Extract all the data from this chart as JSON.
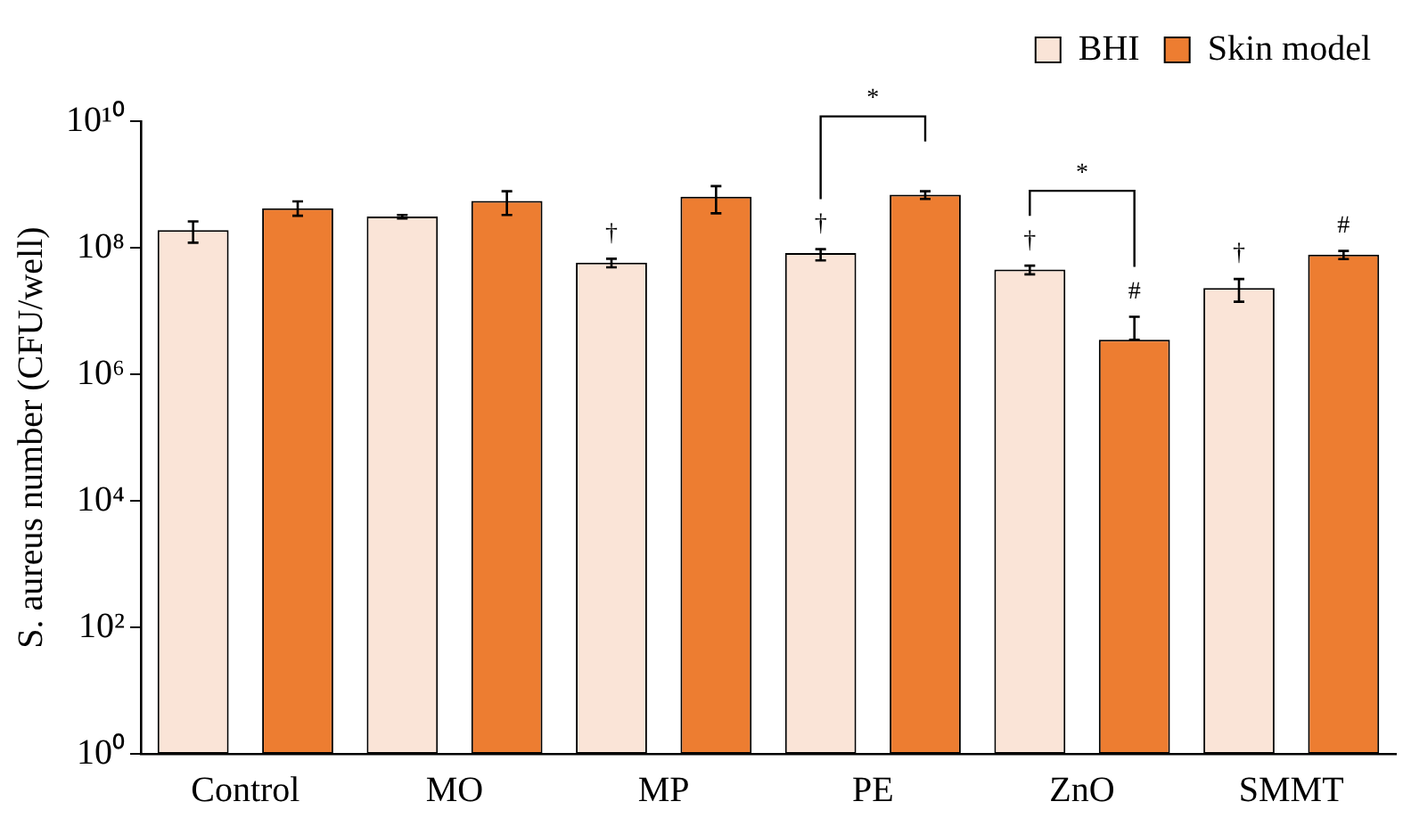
{
  "chart_data": {
    "type": "bar",
    "ylabel": "S. aureus number (CFU/well)",
    "categories": [
      "Control",
      "MO",
      "MP",
      "PE",
      "ZnO",
      "SMMT"
    ],
    "series": [
      {
        "name": "BHI",
        "color": "#fae4d7",
        "values": [
          190000000,
          310000000,
          58000000,
          82000000,
          45000000,
          23000000
        ],
        "errors": [
          [
            120000000,
            260000000
          ],
          [
            290000000,
            330000000
          ],
          [
            49000000,
            67000000
          ],
          [
            63000000,
            95000000
          ],
          [
            38000000,
            52000000
          ],
          [
            14000000,
            32000000
          ]
        ],
        "value_labels": [
          null,
          null,
          "†",
          "†",
          "†",
          "†"
        ]
      },
      {
        "name": "Skin model",
        "color": "#ed7d31",
        "values": [
          420000000,
          550000000,
          640000000,
          690000000,
          3500000,
          78000000
        ],
        "errors": [
          [
            320000000,
            540000000
          ],
          [
            330000000,
            780000000
          ],
          [
            350000000,
            940000000
          ],
          [
            590000000,
            780000000
          ],
          [
            3500000,
            8100000
          ],
          [
            66000000,
            89000000
          ]
        ],
        "value_labels": [
          null,
          null,
          null,
          null,
          "#",
          "#"
        ]
      }
    ],
    "log": "y",
    "ylim": [
      1,
      10000000000
    ],
    "yticks": [
      {
        "value": 1,
        "label": "10⁰"
      },
      {
        "value": 100,
        "label": "10²"
      },
      {
        "value": 10000,
        "label": "10⁴"
      },
      {
        "value": 1000000,
        "label": "10⁶"
      },
      {
        "value": 100000000,
        "label": "10⁸"
      },
      {
        "value": 10000000000,
        "label": "10¹⁰"
      }
    ],
    "grid": false,
    "legend": "top right",
    "annotations": [
      "*",
      "*"
    ]
  }
}
